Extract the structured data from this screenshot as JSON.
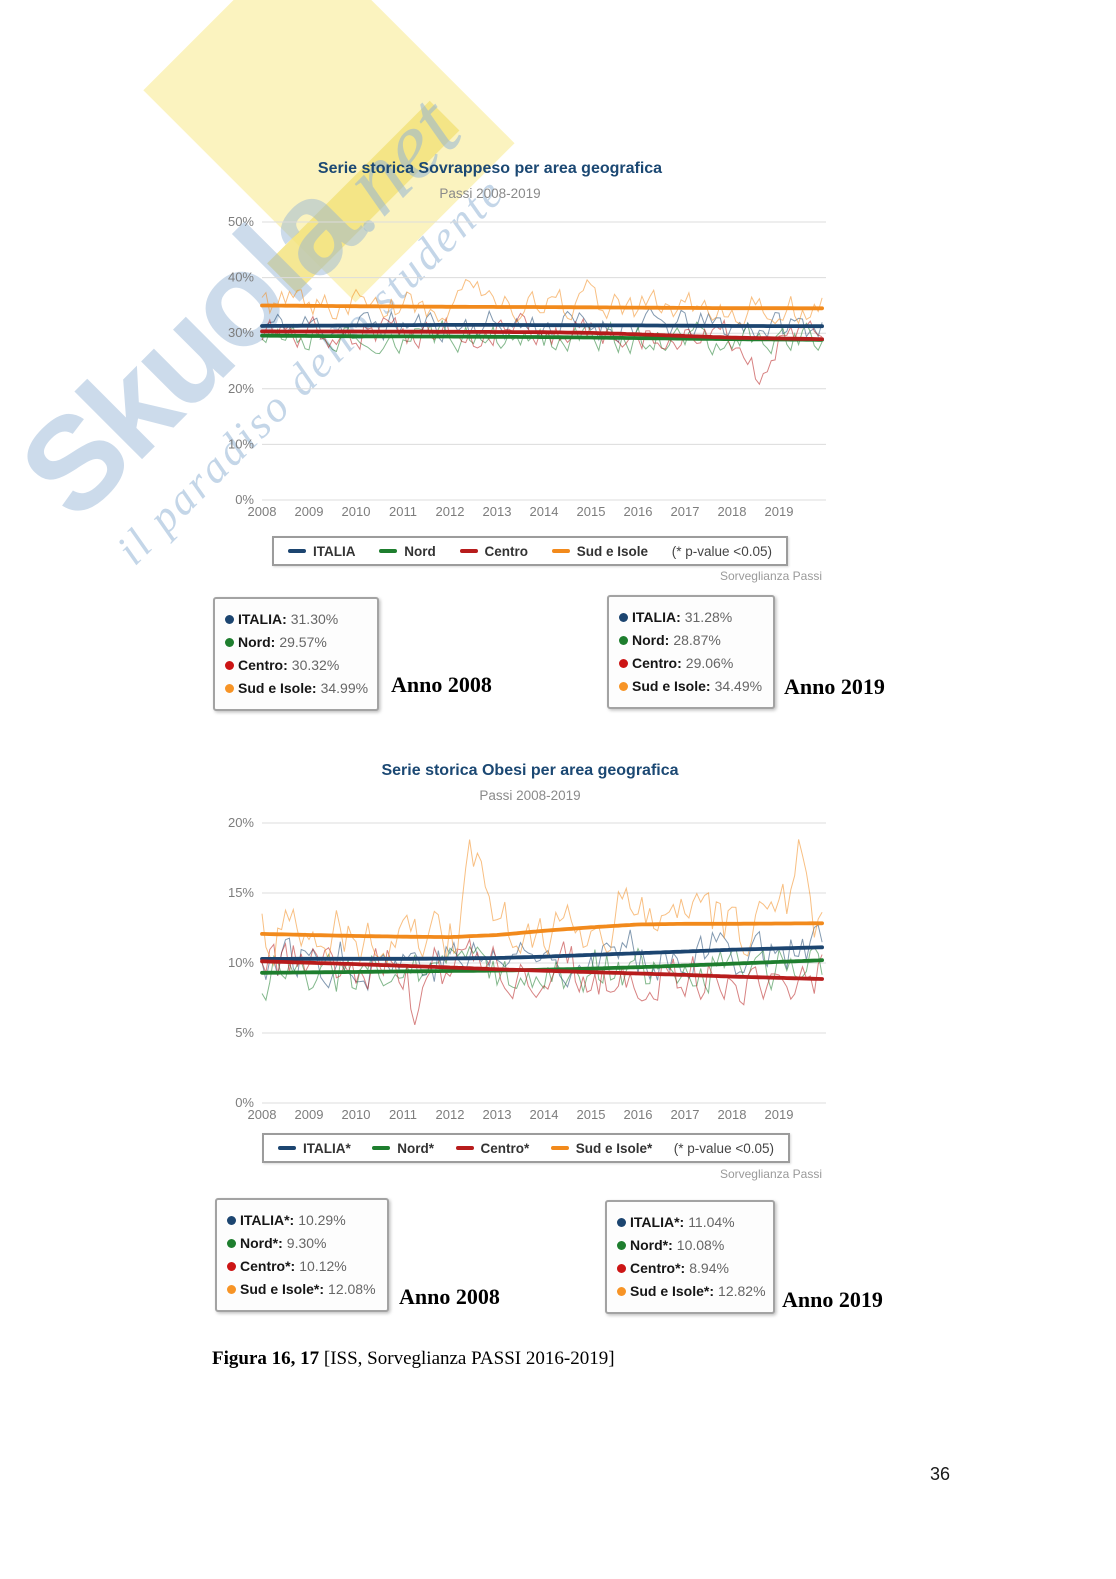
{
  "watermark": {
    "brand": "Skuola",
    "tld": ".net",
    "tagline": "il paradiso dello studente",
    "brand_color": "#94b4d6",
    "accent_yellow": "#faf1b4"
  },
  "chart_data": [
    {
      "type": "line",
      "title": "Serie storica Sovrappeso per area geografica",
      "subtitle": "Passi 2008-2019",
      "x": [
        2008,
        2009,
        2010,
        2011,
        2012,
        2013,
        2014,
        2015,
        2016,
        2017,
        2018,
        2019
      ],
      "ylim": [
        0,
        50
      ],
      "yticks": [
        0,
        10,
        20,
        30,
        40,
        50
      ],
      "ytick_suffix": "%",
      "grid": "horizontal",
      "legend_position": "bottom",
      "legend_note": "(* p-value <0.05)",
      "source": "Sorveglianza Passi",
      "series": [
        {
          "name": "ITALIA",
          "color": "#1c4570",
          "noise_amp": 2.6,
          "noise_spikes": [],
          "values": [
            31.3,
            31.35,
            31.4,
            31.45,
            31.5,
            31.5,
            31.45,
            31.42,
            31.4,
            31.35,
            31.3,
            31.28
          ]
        },
        {
          "name": "Nord",
          "color": "#1e7e2e",
          "noise_amp": 2.4,
          "noise_spikes": [],
          "values": [
            29.57,
            29.5,
            29.45,
            29.42,
            29.4,
            29.35,
            29.3,
            29.22,
            29.12,
            29.02,
            28.93,
            28.87
          ]
        },
        {
          "name": "Centro",
          "color": "#b71c1c",
          "noise_amp": 2.6,
          "noise_spikes": [
            {
              "t": 127,
              "dv": -6.5
            }
          ],
          "values": [
            30.32,
            30.3,
            30.3,
            30.28,
            30.25,
            30.22,
            30.18,
            30.05,
            29.8,
            29.5,
            29.2,
            29.06
          ]
        },
        {
          "name": "Sud e Isole",
          "color": "#f28a1c",
          "noise_amp": 2.6,
          "noise_spikes": [
            {
              "t": 53,
              "dv": 4.0
            },
            {
              "t": 83,
              "dv": 4.2
            }
          ],
          "values": [
            34.99,
            34.92,
            34.85,
            34.8,
            34.75,
            34.72,
            34.7,
            34.65,
            34.6,
            34.55,
            34.5,
            34.49
          ]
        }
      ],
      "boxes": [
        {
          "title": "Anno 2008",
          "items": [
            {
              "name": "ITALIA",
              "value": "31.30%",
              "color": "#1c4570"
            },
            {
              "name": "Nord",
              "value": "29.57%",
              "color": "#1e7e2e"
            },
            {
              "name": "Centro",
              "value": "30.32%",
              "color": "#cc1515"
            },
            {
              "name": "Sud e Isole",
              "value": "34.99%",
              "color": "#f79426"
            }
          ]
        },
        {
          "title": "Anno 2019",
          "items": [
            {
              "name": "ITALIA",
              "value": "31.28%",
              "color": "#1c4570"
            },
            {
              "name": "Nord",
              "value": "28.87%",
              "color": "#1e7e2e"
            },
            {
              "name": "Centro",
              "value": "29.06%",
              "color": "#cc1515"
            },
            {
              "name": "Sud e Isole",
              "value": "34.49%",
              "color": "#f79426"
            }
          ]
        }
      ]
    },
    {
      "type": "line",
      "title": "Serie storica Obesi per area geografica",
      "subtitle": "Passi 2008-2019",
      "x": [
        2008,
        2009,
        2010,
        2011,
        2012,
        2013,
        2014,
        2015,
        2016,
        2017,
        2018,
        2019
      ],
      "ylim": [
        0,
        20
      ],
      "yticks": [
        0,
        5,
        10,
        15,
        20
      ],
      "ytick_suffix": "%",
      "grid": "horizontal",
      "legend_position": "bottom",
      "legend_note": "(* p-value <0.05)",
      "source": "Sorveglianza Passi",
      "series": [
        {
          "name": "ITALIA*",
          "color": "#1c4570",
          "noise_amp": 1.6,
          "noise_spikes": [],
          "values": [
            10.29,
            10.3,
            10.3,
            10.3,
            10.32,
            10.36,
            10.45,
            10.58,
            10.7,
            10.82,
            10.95,
            11.04
          ]
        },
        {
          "name": "Nord*",
          "color": "#1e7e2e",
          "noise_amp": 1.6,
          "noise_spikes": [],
          "values": [
            9.3,
            9.33,
            9.36,
            9.4,
            9.43,
            9.46,
            9.52,
            9.6,
            9.7,
            9.82,
            9.95,
            10.08
          ]
        },
        {
          "name": "Centro*",
          "color": "#b71c1c",
          "noise_amp": 1.7,
          "noise_spikes": [
            {
              "t": 40,
              "dv": -3.6
            },
            {
              "t": 134,
              "dv": -2.6
            }
          ],
          "values": [
            10.12,
            10.02,
            9.92,
            9.8,
            9.68,
            9.55,
            9.45,
            9.35,
            9.25,
            9.15,
            9.03,
            8.94
          ]
        },
        {
          "name": "Sud e Isole*",
          "color": "#f28a1c",
          "noise_amp": 1.9,
          "noise_spikes": [
            {
              "t": 54,
              "dv": 5.6
            },
            {
              "t": 137,
              "dv": 5.2
            },
            {
              "t": 92,
              "dv": 2.5
            }
          ],
          "values": [
            12.08,
            12.0,
            11.93,
            11.88,
            11.85,
            12.0,
            12.3,
            12.55,
            12.75,
            12.8,
            12.8,
            12.82
          ]
        }
      ],
      "boxes": [
        {
          "title": "Anno 2008",
          "items": [
            {
              "name": "ITALIA*",
              "value": "10.29%",
              "color": "#1c4570"
            },
            {
              "name": "Nord*",
              "value": "9.30%",
              "color": "#1e7e2e"
            },
            {
              "name": "Centro*",
              "value": "10.12%",
              "color": "#cc1515"
            },
            {
              "name": "Sud e Isole*",
              "value": "12.08%",
              "color": "#f79426"
            }
          ]
        },
        {
          "title": "Anno 2019",
          "items": [
            {
              "name": "ITALIA*",
              "value": "11.04%",
              "color": "#1c4570"
            },
            {
              "name": "Nord*",
              "value": "10.08%",
              "color": "#1e7e2e"
            },
            {
              "name": "Centro*",
              "value": "8.94%",
              "color": "#cc1515"
            },
            {
              "name": "Sud e Isole*",
              "value": "12.82%",
              "color": "#f79426"
            }
          ]
        }
      ]
    }
  ],
  "caption": {
    "prefix": "Figura 16, 17",
    "text": " [ISS, Sorveglianza PASSI 2016-2019]"
  },
  "page_number": "36"
}
